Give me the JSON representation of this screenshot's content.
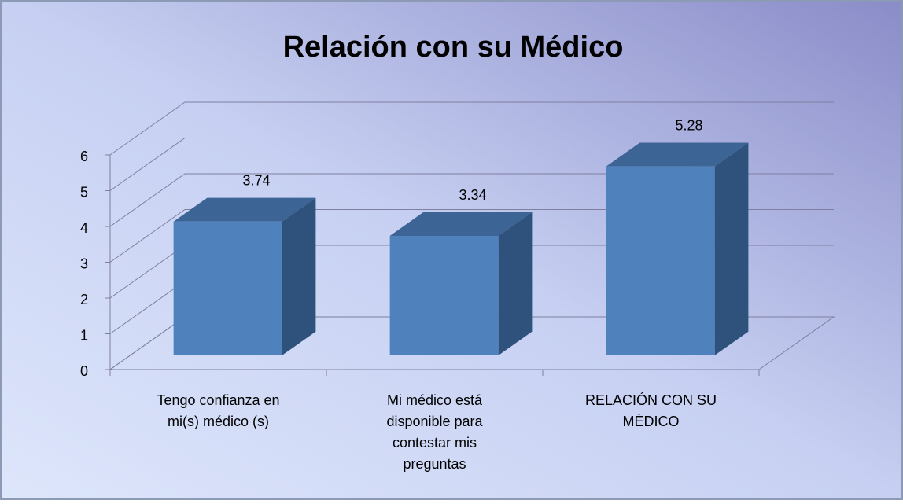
{
  "chart_data": {
    "type": "bar3d",
    "title": "Relación con su Médico",
    "categories": [
      "Tengo confianza en mi(s) médico (s)",
      "Mi médico está disponible para contestar mis preguntas",
      "RELACIÓN CON SU MÉDICO"
    ],
    "values": [
      3.74,
      3.34,
      5.28
    ],
    "color": "#4f81bd",
    "ylim": [
      0,
      6
    ],
    "yticks": [
      0,
      1,
      2,
      3,
      4,
      5,
      6
    ],
    "grid": true
  }
}
